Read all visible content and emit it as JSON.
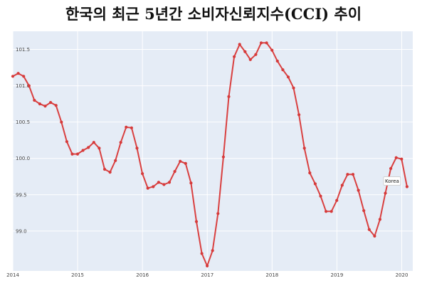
{
  "title": "한국의 최근 5년간 소비자신뢰지수(CCI) 추이",
  "colors": {
    "plot_bg": "#e5ecf6",
    "line": "#d94040",
    "marker": "#d63a3a"
  },
  "chart_data": {
    "type": "line",
    "title": "한국의 최근 5년간 소비자신뢰지수(CCI) 추이",
    "xlabel": "",
    "ylabel": "",
    "xlim": [
      2014.0,
      2020.17
    ],
    "ylim": [
      98.45,
      101.75
    ],
    "grid": true,
    "x_ticks": [
      "2014",
      "2015",
      "2016",
      "2017",
      "2018",
      "2019",
      "2020"
    ],
    "y_ticks": [
      "99.0",
      "99.5",
      "100.0",
      "100.5",
      "101.0",
      "101.5"
    ],
    "series": [
      {
        "name": "Korea",
        "x_start": 2014.0,
        "step_years": 0.0833,
        "values": [
          101.13,
          101.17,
          101.13,
          101.0,
          100.8,
          100.75,
          100.72,
          100.77,
          100.73,
          100.5,
          100.23,
          100.06,
          100.06,
          100.11,
          100.15,
          100.22,
          100.14,
          99.85,
          99.81,
          99.97,
          100.22,
          100.43,
          100.42,
          100.14,
          99.79,
          99.59,
          99.61,
          99.67,
          99.64,
          99.67,
          99.82,
          99.96,
          99.93,
          99.66,
          99.13,
          98.69,
          98.52,
          98.73,
          99.24,
          100.02,
          100.85,
          101.4,
          101.57,
          101.47,
          101.36,
          101.43,
          101.59,
          101.59,
          101.49,
          101.34,
          101.22,
          101.12,
          100.97,
          100.6,
          100.14,
          99.8,
          99.65,
          99.48,
          99.27,
          99.27,
          99.42,
          99.63,
          99.78,
          99.78,
          99.56,
          99.28,
          99.02,
          98.93,
          99.16,
          99.52,
          99.86,
          100.01,
          99.99,
          99.61
        ]
      }
    ],
    "annotation": "Korea"
  }
}
